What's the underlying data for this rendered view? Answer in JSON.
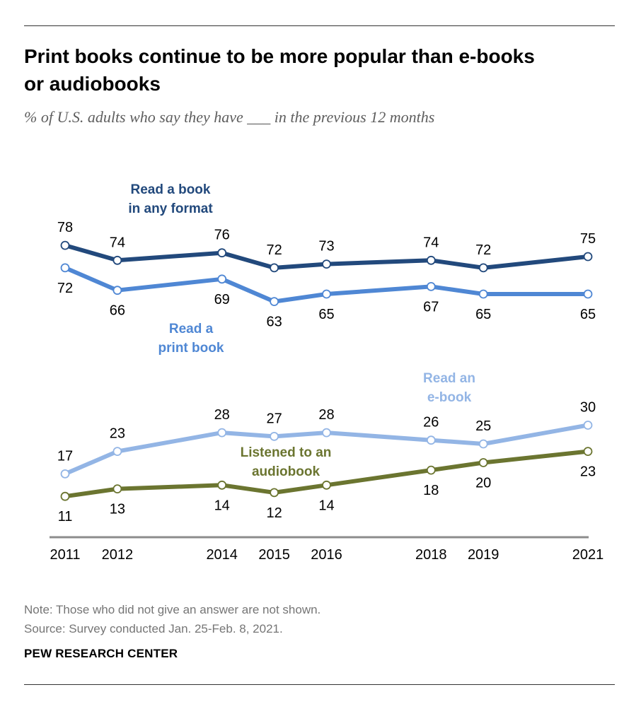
{
  "header": {
    "title_line1": "Print books continue to be more popular than e-books",
    "title_line2": "or audiobooks",
    "subtitle": "% of U.S. adults who say they have ___ in the previous 12 months"
  },
  "footer": {
    "note": "Note: Those who did not give an answer are not shown.",
    "source": "Source: Survey conducted Jan. 25-Feb. 8, 2021.",
    "brand": "PEW RESEARCH CENTER"
  },
  "chart_data": {
    "type": "line",
    "x": [
      2011,
      2012,
      2014,
      2015,
      2016,
      2018,
      2019,
      2021
    ],
    "x_tick_labels": [
      "2011",
      "2012",
      "2014",
      "2015",
      "2016",
      "2018",
      "2019",
      "2021"
    ],
    "ylim": [
      0,
      100
    ],
    "grid": false,
    "legend": "inline labels",
    "series": [
      {
        "name_lines": [
          "Read a book",
          "in any format"
        ],
        "color": "#22497c",
        "values": [
          78,
          74,
          76,
          72,
          73,
          74,
          72,
          75
        ],
        "labels": [
          "78",
          "74",
          "76",
          "72",
          "73",
          "74",
          "72",
          "75"
        ],
        "label_side": "above"
      },
      {
        "name_lines": [
          "Read a",
          "print book"
        ],
        "color": "#4f87d4",
        "values": [
          72,
          66,
          69,
          63,
          65,
          67,
          65,
          65
        ],
        "labels": [
          "72",
          "66",
          "69",
          "63",
          "65",
          "67",
          "65",
          "65"
        ],
        "label_side": "below"
      },
      {
        "name_lines": [
          "Read an",
          "e-book"
        ],
        "color": "#93b5e5",
        "values": [
          17,
          23,
          28,
          27,
          28,
          26,
          25,
          30
        ],
        "labels": [
          "17",
          "23",
          "28",
          "27",
          "28",
          "26",
          "25",
          "30"
        ],
        "label_side": "above"
      },
      {
        "name_lines": [
          "Listened to an",
          "audiobook"
        ],
        "color": "#6b7530",
        "values": [
          11,
          13,
          14,
          12,
          14,
          18,
          20,
          23
        ],
        "labels": [
          "11",
          "13",
          "14",
          "12",
          "14",
          "18",
          "20",
          "23"
        ],
        "label_side": "below"
      }
    ]
  }
}
